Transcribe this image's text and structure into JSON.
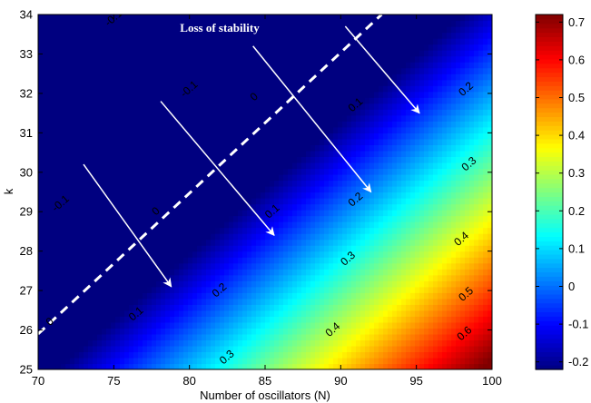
{
  "chart_data": {
    "type": "heatmap",
    "title": "",
    "xlabel": "Number of oscillators (N)",
    "ylabel": "k",
    "xlim": [
      70,
      100
    ],
    "ylim": [
      25,
      34
    ],
    "x_ticks": [
      "70",
      "75",
      "80",
      "85",
      "90",
      "95",
      "100"
    ],
    "y_ticks": [
      "25",
      "26",
      "27",
      "28",
      "29",
      "30",
      "31",
      "32",
      "33",
      "34"
    ],
    "colorbar": {
      "colormap": "jet",
      "range": [
        -0.22,
        0.72
      ],
      "ticks": [
        "-0.2",
        "-0.1",
        "0",
        "0.1",
        "0.2",
        "0.3",
        "0.4",
        "0.5",
        "0.6",
        "0.7"
      ]
    },
    "surface": {
      "description_formula": "z = 0.0336*N - 0.1*k - 0.113"
    },
    "contour_levels": [
      -0.1,
      0,
      0.1,
      0.2,
      0.3,
      0.4,
      0.5,
      0.6
    ],
    "contour_labels": [
      {
        "text": "-0.1",
        "x": 71.5,
        "y": 29.2
      },
      {
        "text": "-0.1",
        "x": 80.0,
        "y": 32.1
      },
      {
        "text": "-0.1",
        "x": 75.0,
        "y": 33.9
      },
      {
        "text": "0",
        "x": 70.8,
        "y": 26.2
      },
      {
        "text": "0",
        "x": 77.8,
        "y": 29.0
      },
      {
        "text": "0",
        "x": 84.3,
        "y": 31.9
      },
      {
        "text": "0.1",
        "x": 76.5,
        "y": 26.4
      },
      {
        "text": "0.1",
        "x": 85.5,
        "y": 29.0
      },
      {
        "text": "0.1",
        "x": 91.0,
        "y": 31.7
      },
      {
        "text": "0.2",
        "x": 82.0,
        "y": 27.0
      },
      {
        "text": "0.2",
        "x": 91.0,
        "y": 29.3
      },
      {
        "text": "0.2",
        "x": 98.3,
        "y": 32.1
      },
      {
        "text": "0.3",
        "x": 82.5,
        "y": 25.3
      },
      {
        "text": "0.3",
        "x": 90.5,
        "y": 27.8
      },
      {
        "text": "0.3",
        "x": 98.5,
        "y": 30.2
      },
      {
        "text": "0.4",
        "x": 89.5,
        "y": 26.0
      },
      {
        "text": "0.4",
        "x": 98.0,
        "y": 28.3
      },
      {
        "text": "0.5",
        "x": 98.3,
        "y": 26.9
      },
      {
        "text": "0.6",
        "x": 98.2,
        "y": 25.9
      }
    ],
    "stability_boundary": {
      "x": [
        70,
        92.7
      ],
      "y": [
        25.9,
        34
      ]
    },
    "annotations": [
      {
        "text": "Loss of stability",
        "x": 82.0,
        "y": 33.65
      }
    ],
    "arrows": [
      {
        "x": [
          73,
          78.8
        ],
        "y": [
          30.2,
          27.1
        ]
      },
      {
        "x": [
          78.1,
          85.6
        ],
        "y": [
          31.8,
          28.4
        ]
      },
      {
        "x": [
          84.2,
          92
        ],
        "y": [
          33.2,
          29.5
        ]
      },
      {
        "x": [
          90.3,
          95.2
        ],
        "y": [
          33.7,
          31.5
        ]
      }
    ]
  },
  "colors": {
    "boundary": "#ffffff",
    "arrows": "#ffffff",
    "text": "#000000"
  }
}
